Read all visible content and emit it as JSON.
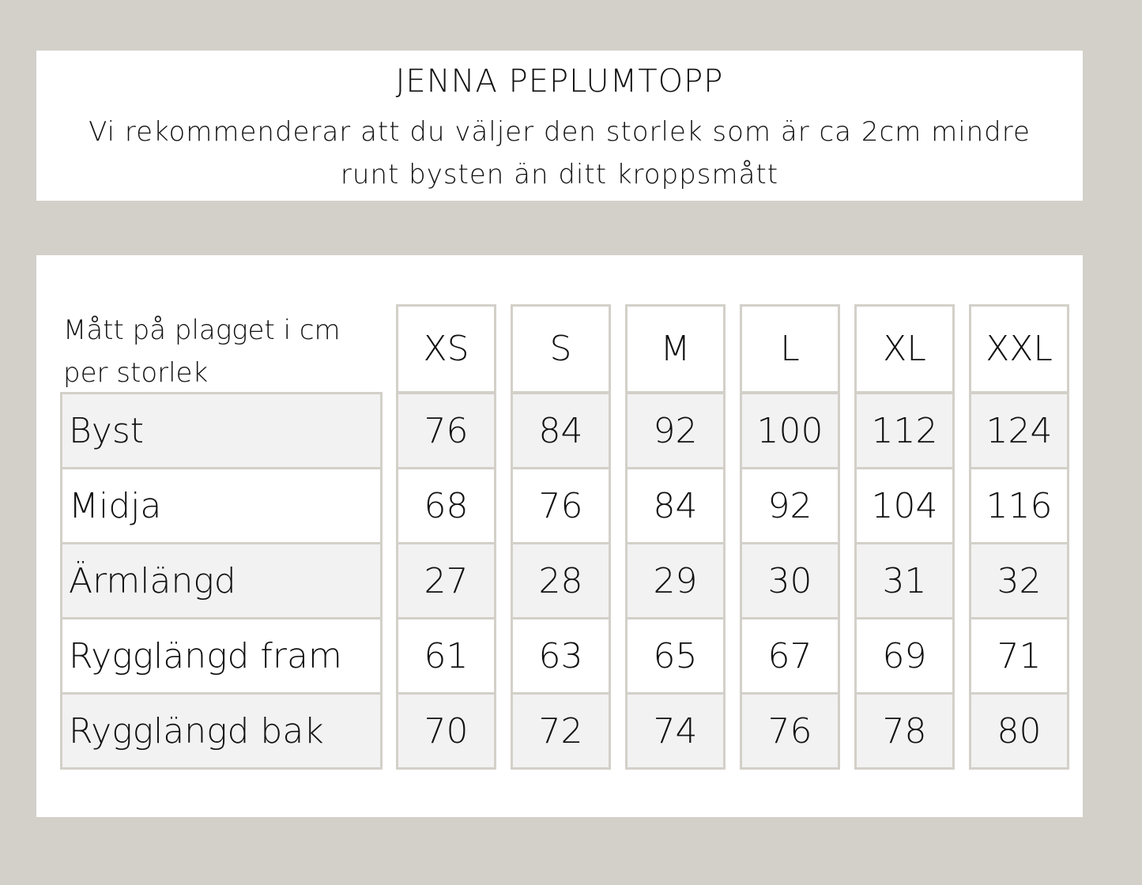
{
  "header": {
    "title": "JENNA PEPLUMTOPP",
    "subtitle": "Vi rekommenderar att du väljer den storlek som är ca 2cm mindre runt bysten än ditt kroppsmått"
  },
  "table": {
    "corner_label": "Mått på plagget i cm per storlek",
    "sizes": [
      "XS",
      "S",
      "M",
      "L",
      "XL",
      "XXL"
    ],
    "rows": [
      {
        "label": "Byst",
        "values": [
          "76",
          "84",
          "92",
          "100",
          "112",
          "124"
        ]
      },
      {
        "label": "Midja",
        "values": [
          "68",
          "76",
          "84",
          "92",
          "104",
          "116"
        ]
      },
      {
        "label": "Ärmlängd",
        "values": [
          "27",
          "28",
          "29",
          "30",
          "31",
          "32"
        ]
      },
      {
        "label": "Rygglängd fram",
        "values": [
          "61",
          "63",
          "65",
          "67",
          "69",
          "71"
        ]
      },
      {
        "label": "Rygglängd bak",
        "values": [
          "70",
          "72",
          "74",
          "76",
          "78",
          "80"
        ]
      }
    ]
  },
  "colors": {
    "background": "#d3d0c9",
    "border": "#d3d0c9",
    "shaded_row": "#f2f2f2"
  }
}
